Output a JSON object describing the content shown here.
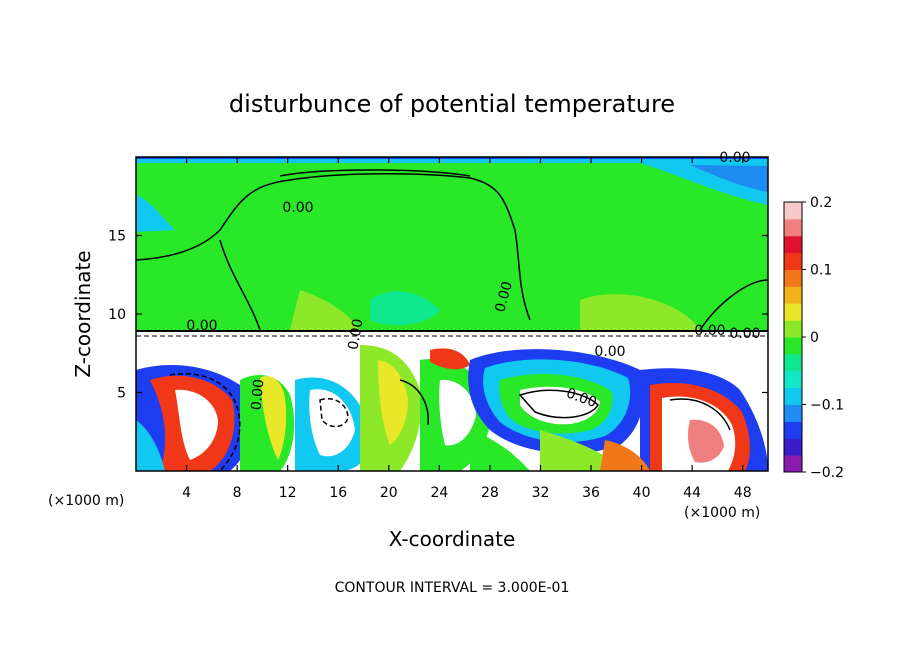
{
  "chart_data": {
    "type": "heatmap",
    "title": "disturbunce of potential temperature",
    "xlabel": "X-coordinate",
    "ylabel": "Z-coordinate",
    "x_unit_label_left": "(×1000 m)",
    "x_unit_label_right": "(×1000 m)",
    "x_ticks": [
      4,
      8,
      12,
      16,
      20,
      24,
      28,
      32,
      36,
      40,
      44,
      48
    ],
    "y_ticks": [
      5,
      10,
      15
    ],
    "xlim": [
      0,
      50
    ],
    "ylim": [
      0,
      20
    ],
    "colorbar": {
      "ticks": [
        {
          "value": 0.2,
          "label": "0.2"
        },
        {
          "value": 0.1,
          "label": "0.1"
        },
        {
          "value": 0,
          "label": "0"
        },
        {
          "value": -0.1,
          "label": "−0.1"
        },
        {
          "value": -0.2,
          "label": "−0.2"
        }
      ],
      "range": [
        -0.2,
        0.2
      ],
      "colors": [
        "#8a1cb0",
        "#3a1cc8",
        "#1e3cf0",
        "#1e8cf0",
        "#10c8f0",
        "#10e8c8",
        "#10e890",
        "#28e828",
        "#8ce828",
        "#e8e828",
        "#f0b418",
        "#f07818",
        "#f03818",
        "#e01030",
        "#f08080",
        "#f8c8c8"
      ]
    },
    "contour_labels": [
      "0.00",
      "0.00",
      "0.00",
      "0.00",
      "0.00",
      "0.00",
      "0.00",
      "0.00",
      "0.00",
      "0.00"
    ],
    "footer": "CONTOUR INTERVAL = 3.000E-01"
  }
}
